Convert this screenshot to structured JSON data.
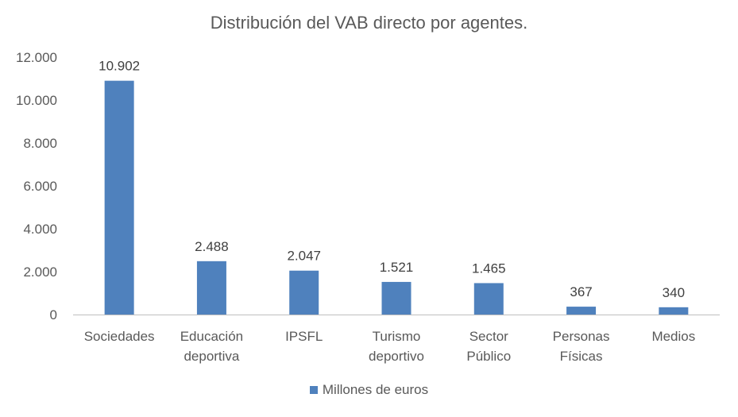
{
  "chart_data": {
    "type": "bar",
    "title": "Distribución del VAB directo por agentes.",
    "categories": [
      [
        "Sociedades"
      ],
      [
        "Educación",
        "deportiva"
      ],
      [
        "IPSFL"
      ],
      [
        "Turismo",
        "deportivo"
      ],
      [
        "Sector",
        "Público"
      ],
      [
        "Personas",
        "Físicas"
      ],
      [
        "Medios"
      ]
    ],
    "series": [
      {
        "name": "Millones de euros",
        "values": [
          10902,
          2488,
          2047,
          1521,
          1465,
          367,
          340
        ],
        "value_labels": [
          "10.902",
          "2.488",
          "2.047",
          "1.521",
          "1.465",
          "367",
          "340"
        ],
        "color": "#4F81BD"
      }
    ],
    "ylim": [
      0,
      12000
    ],
    "yticks": [
      0,
      2000,
      4000,
      6000,
      8000,
      10000,
      12000
    ],
    "ytick_labels": [
      "0",
      "2.000",
      "4.000",
      "6.000",
      "8.000",
      "10.000",
      "12.000"
    ],
    "grid": false,
    "legend_position": "bottom"
  },
  "colors": {
    "axis": "#BFBFBF",
    "text": "#595959"
  }
}
